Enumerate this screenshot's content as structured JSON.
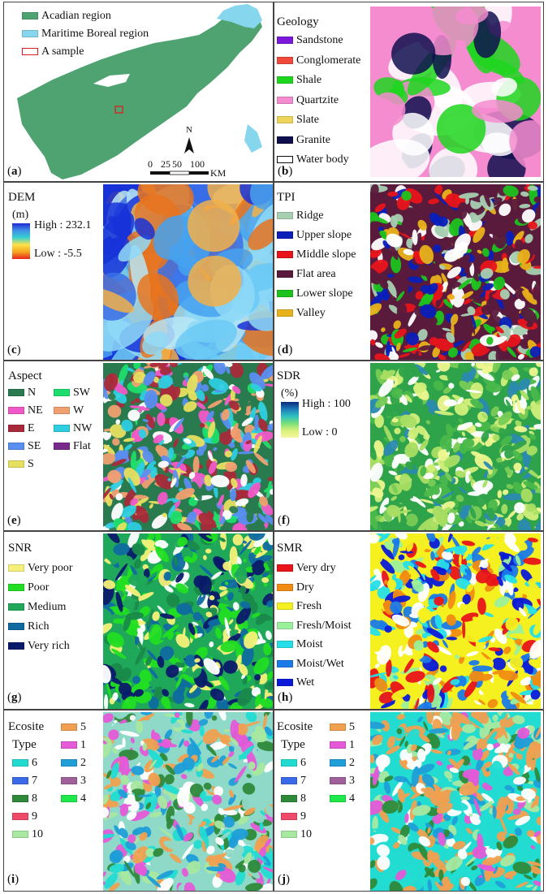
{
  "panels": [
    {
      "key": "a",
      "label": "a",
      "title": "",
      "legend": [
        {
          "label": "Acadian region",
          "color": "#4fa371",
          "kind": "fill"
        },
        {
          "label": "Maritime Boreal region",
          "color": "#86d6ee",
          "kind": "fill"
        },
        {
          "label": "A sample",
          "color": "#d81f1f",
          "kind": "outline"
        }
      ],
      "scale": {
        "ticks": [
          "0",
          "25",
          "50",
          "100"
        ],
        "unit": "KM"
      },
      "north": "N"
    },
    {
      "key": "b",
      "label": "b",
      "title": "Geology",
      "legend": [
        {
          "label": "Sandstone",
          "color": "#7b18d9",
          "kind": "fill"
        },
        {
          "label": "Conglomerate",
          "color": "#f0493a",
          "kind": "fill"
        },
        {
          "label": "Shale",
          "color": "#1fd61f",
          "kind": "fill"
        },
        {
          "label": "Quartzite",
          "color": "#f48ccf",
          "kind": "fill"
        },
        {
          "label": "Slate",
          "color": "#ecd55a",
          "kind": "fill"
        },
        {
          "label": "Granite",
          "color": "#0f0f4f",
          "kind": "fill"
        },
        {
          "label": "Water body",
          "color": "#ffffff",
          "kind": "outline-black"
        }
      ],
      "palette": [
        "#f48ccf",
        "#1fd61f",
        "#0f0f4f",
        "#ffffff"
      ]
    },
    {
      "key": "c",
      "label": "c",
      "title": "DEM",
      "unit": "(m)",
      "high": "High : 232.1",
      "low": "Low : -5.5",
      "gradient": [
        "#1e2bd6",
        "#3f8fe8",
        "#36d1d1",
        "#ffe24a",
        "#f7a51f",
        "#e8241e"
      ],
      "palette": [
        "#1733d8",
        "#3a6ee8",
        "#46a2ef",
        "#6ccaf5",
        "#8fd9f7",
        "#b9e6f5",
        "#f2b04a",
        "#e8741e"
      ]
    },
    {
      "key": "d",
      "label": "d",
      "title": "TPI",
      "legend": [
        {
          "label": "Ridge",
          "color": "#a7cfb1",
          "kind": "fill"
        },
        {
          "label": "Upper slope",
          "color": "#0a1fb8",
          "kind": "fill"
        },
        {
          "label": "Middle slope",
          "color": "#e8141a",
          "kind": "fill"
        },
        {
          "label": "Flat area",
          "color": "#5a1a3c",
          "kind": "fill"
        },
        {
          "label": "Lower slope",
          "color": "#1dc21d",
          "kind": "fill"
        },
        {
          "label": "Valley",
          "color": "#e8b21a",
          "kind": "fill"
        }
      ],
      "palette": [
        "#5a1a3c",
        "#5a1a3c",
        "#e8141a",
        "#0a1fb8",
        "#a7cfb1",
        "#1dc21d",
        "#e8b21a",
        "#ffffff"
      ]
    },
    {
      "key": "e",
      "label": "e",
      "title": "Aspect",
      "legend": [
        {
          "label": "N",
          "color": "#2a7a4f",
          "kind": "fill"
        },
        {
          "label": "SW",
          "color": "#1dde6c",
          "kind": "fill"
        },
        {
          "label": "NE",
          "color": "#f05ac8",
          "kind": "fill"
        },
        {
          "label": "W",
          "color": "#f0a070",
          "kind": "fill"
        },
        {
          "label": "E",
          "color": "#a82a3a",
          "kind": "fill"
        },
        {
          "label": "NW",
          "color": "#2ecde0",
          "kind": "fill"
        },
        {
          "label": "SE",
          "color": "#5a8ef0",
          "kind": "fill"
        },
        {
          "label": "Flat",
          "color": "#7a2a8a",
          "kind": "fill"
        },
        {
          "label": "S",
          "color": "#e6e060",
          "kind": "fill"
        }
      ],
      "palette": [
        "#2a7a4f",
        "#1dde6c",
        "#f05ac8",
        "#f0a070",
        "#a82a3a",
        "#2ecde0",
        "#5a8ef0",
        "#e6e060",
        "#ffffff"
      ]
    },
    {
      "key": "f",
      "label": "f",
      "title": "SDR",
      "unit": "(%)",
      "high": "High : 100",
      "low": "Low : 0",
      "gradient": [
        "#0a2a7a",
        "#1f7ab8",
        "#2ec0c0",
        "#7ae07a",
        "#d8f07a",
        "#f5f7a0"
      ],
      "palette": [
        "#2fa34a",
        "#49b84a",
        "#78cc55",
        "#a8de62",
        "#d2ef7a",
        "#eef78f",
        "#2a8ab0",
        "#ffffff"
      ]
    },
    {
      "key": "g",
      "label": "g",
      "title": "SNR",
      "legend": [
        {
          "label": "Very poor",
          "color": "#f5f07a",
          "kind": "fill"
        },
        {
          "label": "Poor",
          "color": "#22de22",
          "kind": "fill"
        },
        {
          "label": "Medium",
          "color": "#1fa85a",
          "kind": "fill"
        },
        {
          "label": "Rich",
          "color": "#0f6aa0",
          "kind": "fill"
        },
        {
          "label": "Very rich",
          "color": "#0a1a6a",
          "kind": "fill"
        }
      ],
      "palette": [
        "#1fa85a",
        "#22de22",
        "#22de22",
        "#1a8a4a",
        "#0f6aa0",
        "#0a1a6a",
        "#f5f07a",
        "#ffffff"
      ]
    },
    {
      "key": "h",
      "label": "h",
      "title": "SMR",
      "legend": [
        {
          "label": "Very dry",
          "color": "#e8141a",
          "kind": "fill"
        },
        {
          "label": "Dry",
          "color": "#f08c12",
          "kind": "fill"
        },
        {
          "label": "Fresh",
          "color": "#f5f01f",
          "kind": "fill"
        },
        {
          "label": "Fresh/Moist",
          "color": "#9af09a",
          "kind": "fill"
        },
        {
          "label": "Moist",
          "color": "#25dfe8",
          "kind": "fill"
        },
        {
          "label": "Moist/Wet",
          "color": "#1a7ae8",
          "kind": "fill"
        },
        {
          "label": "Wet",
          "color": "#0a1ad8",
          "kind": "fill"
        }
      ],
      "palette": [
        "#f5f01f",
        "#f5f01f",
        "#f08c12",
        "#e8141a",
        "#9af09a",
        "#25dfe8",
        "#1a7ae8",
        "#0a1ad8",
        "#ffffff"
      ]
    },
    {
      "key": "i",
      "label": "i",
      "title": "Ecosite",
      "subtitle": "Type",
      "legend": [
        {
          "label": "5",
          "color": "#f0a050",
          "kind": "fill"
        },
        {
          "label": "6",
          "color": "#22dcd2",
          "kind": "fill"
        },
        {
          "label": "1",
          "color": "#e45ad8",
          "kind": "fill"
        },
        {
          "label": "7",
          "color": "#3a6ae8",
          "kind": "fill"
        },
        {
          "label": "2",
          "color": "#1f9ed8",
          "kind": "fill"
        },
        {
          "label": "8",
          "color": "#2e8a3a",
          "kind": "fill"
        },
        {
          "label": "3",
          "color": "#a0609a",
          "kind": "fill"
        },
        {
          "label": "9",
          "color": "#f04a6a",
          "kind": "fill"
        },
        {
          "label": "4",
          "color": "#1ee84a",
          "kind": "fill"
        },
        {
          "label": "10",
          "color": "#a8e8a0",
          "kind": "fill"
        }
      ],
      "palette": [
        "#8fd9c8",
        "#22dcd2",
        "#f0a050",
        "#e45ad8",
        "#a8e8a0",
        "#1f9ed8",
        "#2e8a3a",
        "#ffffff"
      ]
    },
    {
      "key": "j",
      "label": "j",
      "title": "Ecosite",
      "subtitle": "Type",
      "legend": [
        {
          "label": "5",
          "color": "#f0a050",
          "kind": "fill"
        },
        {
          "label": "6",
          "color": "#22dcd2",
          "kind": "fill"
        },
        {
          "label": "1",
          "color": "#e45ad8",
          "kind": "fill"
        },
        {
          "label": "7",
          "color": "#3a6ae8",
          "kind": "fill"
        },
        {
          "label": "2",
          "color": "#1f9ed8",
          "kind": "fill"
        },
        {
          "label": "8",
          "color": "#2e8a3a",
          "kind": "fill"
        },
        {
          "label": "3",
          "color": "#a0609a",
          "kind": "fill"
        },
        {
          "label": "9",
          "color": "#f04a6a",
          "kind": "fill"
        },
        {
          "label": "4",
          "color": "#1ee84a",
          "kind": "fill"
        },
        {
          "label": "10",
          "color": "#a8e8a0",
          "kind": "fill"
        }
      ],
      "palette": [
        "#22dcd2",
        "#f0a050",
        "#f0a050",
        "#a8e8a0",
        "#e45ad8",
        "#1f9ed8",
        "#2e8a3a",
        "#ffffff"
      ]
    }
  ]
}
